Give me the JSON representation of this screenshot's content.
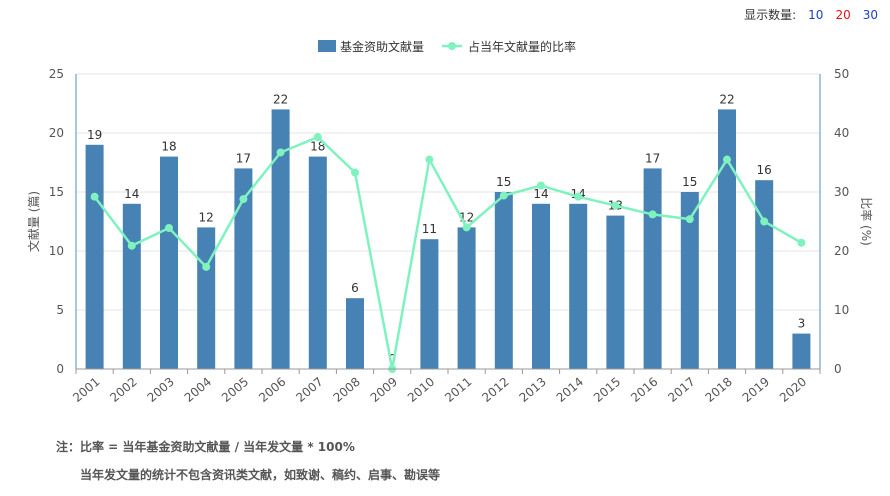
{
  "controls": {
    "label": "显示数量:",
    "options": [
      {
        "value": "10",
        "color": "#1a3ccf"
      },
      {
        "value": "20",
        "color": "#e31414"
      },
      {
        "value": "30",
        "color": "#1a3ccf"
      }
    ]
  },
  "colors": {
    "bar": "#4682b4",
    "line": "#7ff2c0",
    "axis_right": "#4a90c8"
  },
  "chart_data": {
    "type": "bar+line",
    "categories": [
      "2001",
      "2002",
      "2003",
      "2004",
      "2005",
      "2006",
      "2007",
      "2008",
      "2009",
      "2010",
      "2011",
      "2012",
      "2013",
      "2014",
      "2015",
      "2016",
      "2017",
      "2018",
      "2019",
      "2020"
    ],
    "series": [
      {
        "name": "基金资助文献量",
        "type": "bar",
        "axis": "left",
        "values": [
          19,
          14,
          18,
          12,
          17,
          22,
          18,
          6,
          0,
          11,
          12,
          15,
          14,
          14,
          13,
          17,
          15,
          22,
          16,
          3
        ]
      },
      {
        "name": "占当年文献量的比率",
        "type": "line",
        "axis": "right",
        "values": [
          29.2,
          20.9,
          23.9,
          17.3,
          28.8,
          36.7,
          39.3,
          33.3,
          0,
          35.5,
          24.0,
          29.4,
          31.1,
          29.2,
          27.7,
          26.2,
          25.4,
          35.5,
          25.0,
          21.4
        ]
      }
    ],
    "ylabel_left": "文献量 (篇)",
    "ylabel_right": "比率 (%)",
    "ylim_left": [
      0,
      25
    ],
    "ylim_right": [
      0,
      50
    ],
    "yticks_left": [
      0,
      5,
      10,
      15,
      20,
      25
    ],
    "yticks_right": [
      0,
      10,
      20,
      30,
      40,
      50
    ],
    "grid": true,
    "legend_position": "top-center"
  },
  "notes": {
    "line1": "注：比率 = 当年基金资助文献量 / 当年发文量 * 100%",
    "line2": "当年发文量的统计不包含资讯类文献，如致谢、稿约、启事、勘误等"
  }
}
